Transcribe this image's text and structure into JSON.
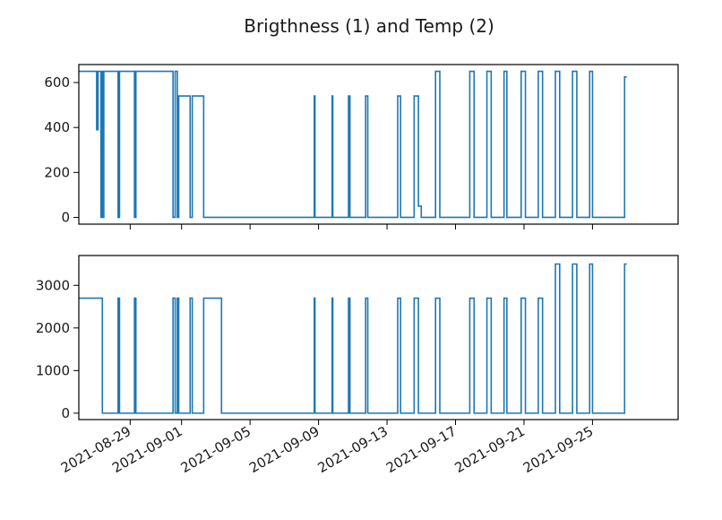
{
  "figure": {
    "suptitle": "Brigthness (1) and Temp (2)",
    "line_color": "#1f77b4"
  },
  "chart_data": [
    {
      "type": "line",
      "name": "brightness-subplot",
      "title": "",
      "xlabel": "",
      "ylabel": "",
      "x_is_date": true,
      "xlim": [
        "2021-08-26",
        "2021-09-30"
      ],
      "ylim": [
        -30,
        680
      ],
      "yticks": [
        0,
        200,
        400,
        600
      ],
      "xtick_dates": [
        "2021-08-29",
        "2021-09-01",
        "2021-09-05",
        "2021-09-09",
        "2021-09-13",
        "2021-09-17",
        "2021-09-21",
        "2021-09-25"
      ],
      "show_xtick_labels": false,
      "grid": false,
      "series": [
        {
          "x": [
            "2021-08-26 00:00",
            "2021-08-27 00:00",
            "2021-08-27 01:00",
            "2021-08-27 01:00",
            "2021-08-27 03:00",
            "2021-08-27 03:00",
            "2021-08-27 06:00",
            "2021-08-27 07:00",
            "2021-08-27 07:00",
            "2021-08-27 08:00",
            "2021-08-27 08:00",
            "2021-08-27 09:00",
            "2021-08-27 09:00",
            "2021-08-27 11:00",
            "2021-08-27 11:00",
            "2021-08-28 07:00",
            "2021-08-28 07:00",
            "2021-08-28 09:00",
            "2021-08-28 09:00",
            "2021-08-29 06:00",
            "2021-08-29 06:00",
            "2021-08-29 08:00",
            "2021-08-29 08:00",
            "2021-08-31 12:00",
            "2021-08-31 12:00",
            "2021-08-31 15:00",
            "2021-08-31 15:00",
            "2021-08-31 18:00",
            "2021-08-31 18:00",
            "2021-08-31 20:00",
            "2021-08-31 20:00",
            "2021-09-01 12:00",
            "2021-09-01 12:00",
            "2021-09-01 15:00",
            "2021-09-01 15:00",
            "2021-09-02 07:00",
            "2021-09-02 07:00",
            "2021-09-03 08:00",
            "2021-09-03 08:00",
            "2021-09-08 18:00",
            "2021-09-08 18:00",
            "2021-09-08 19:00",
            "2021-09-08 19:00",
            "2021-09-09 19:00",
            "2021-09-09 19:00",
            "2021-09-09 20:00",
            "2021-09-09 20:00",
            "2021-09-10 18:00",
            "2021-09-10 18:00",
            "2021-09-10 20:00",
            "2021-09-10 20:00",
            "2021-09-11 18:00",
            "2021-09-11 18:00",
            "2021-09-11 21:00",
            "2021-09-11 21:00",
            "2021-09-13 15:00",
            "2021-09-13 15:00",
            "2021-09-13 19:00",
            "2021-09-13 19:00",
            "2021-09-14 14:00",
            "2021-09-14 14:00",
            "2021-09-14 20:00",
            "2021-09-14 20:00",
            "2021-09-15 00:00",
            "2021-09-15 00:00",
            "2021-09-15 20:00",
            "2021-09-15 20:00",
            "2021-09-16 02:00",
            "2021-09-16 02:00",
            "2021-09-17 20:00",
            "2021-09-17 20:00",
            "2021-09-18 02:00",
            "2021-09-18 02:00",
            "2021-09-18 20:00",
            "2021-09-18 20:00",
            "2021-09-19 02:00",
            "2021-09-19 02:00",
            "2021-09-19 20:00",
            "2021-09-19 20:00",
            "2021-09-20 00:00",
            "2021-09-20 00:00",
            "2021-09-20 20:00",
            "2021-09-20 20:00",
            "2021-09-21 02:00",
            "2021-09-21 02:00",
            "2021-09-21 20:00",
            "2021-09-21 20:00",
            "2021-09-22 02:00",
            "2021-09-22 02:00",
            "2021-09-22 20:00",
            "2021-09-22 20:00",
            "2021-09-23 02:00",
            "2021-09-23 02:00",
            "2021-09-23 20:00",
            "2021-09-23 20:00",
            "2021-09-24 02:00",
            "2021-09-24 02:00",
            "2021-09-24 20:00",
            "2021-09-24 20:00",
            "2021-09-25 00:00",
            "2021-09-25 00:00",
            "2021-09-26 21:00",
            "2021-09-26 21:00",
            "2021-09-27 00:00"
          ],
          "y": [
            650,
            650,
            650,
            390,
            390,
            650,
            650,
            650,
            0,
            0,
            650,
            650,
            0,
            0,
            650,
            650,
            0,
            0,
            650,
            650,
            0,
            0,
            650,
            650,
            0,
            0,
            650,
            650,
            0,
            0,
            540,
            540,
            0,
            0,
            540,
            540,
            0,
            0,
            0,
            0,
            540,
            540,
            0,
            0,
            540,
            540,
            0,
            0,
            540,
            540,
            0,
            0,
            540,
            540,
            0,
            0,
            540,
            540,
            0,
            0,
            540,
            540,
            50,
            50,
            0,
            0,
            650,
            650,
            0,
            0,
            650,
            650,
            0,
            0,
            650,
            650,
            0,
            0,
            650,
            650,
            0,
            0,
            650,
            650,
            0,
            0,
            650,
            650,
            0,
            0,
            650,
            650,
            0,
            0,
            650,
            650,
            0,
            0,
            650,
            650,
            0,
            0,
            625,
            625
          ]
        }
      ]
    },
    {
      "type": "line",
      "name": "temperature-subplot",
      "title": "",
      "xlabel": "",
      "ylabel": "",
      "x_is_date": true,
      "xlim": [
        "2021-08-26",
        "2021-09-30"
      ],
      "ylim": [
        -150,
        3700
      ],
      "yticks": [
        0,
        1000,
        2000,
        3000
      ],
      "xtick_dates": [
        "2021-08-29",
        "2021-09-01",
        "2021-09-05",
        "2021-09-09",
        "2021-09-13",
        "2021-09-17",
        "2021-09-21",
        "2021-09-25"
      ],
      "show_xtick_labels": true,
      "grid": false,
      "series": [
        {
          "x": [
            "2021-08-26 00:00",
            "2021-08-27 09:00",
            "2021-08-27 09:00",
            "2021-08-28 07:00",
            "2021-08-28 07:00",
            "2021-08-28 09:00",
            "2021-08-28 09:00",
            "2021-08-29 06:00",
            "2021-08-29 06:00",
            "2021-08-29 08:00",
            "2021-08-29 08:00",
            "2021-08-31 12:00",
            "2021-08-31 12:00",
            "2021-08-31 15:00",
            "2021-08-31 15:00",
            "2021-08-31 18:00",
            "2021-08-31 18:00",
            "2021-08-31 20:00",
            "2021-08-31 20:00",
            "2021-09-01 12:00",
            "2021-09-01 12:00",
            "2021-09-01 15:00",
            "2021-09-01 15:00",
            "2021-09-02 07:00",
            "2021-09-02 07:00",
            "2021-09-03 08:00",
            "2021-09-03 08:00",
            "2021-09-08 18:00",
            "2021-09-08 18:00",
            "2021-09-08 19:00",
            "2021-09-08 19:00",
            "2021-09-09 19:00",
            "2021-09-09 19:00",
            "2021-09-09 20:00",
            "2021-09-09 20:00",
            "2021-09-10 18:00",
            "2021-09-10 18:00",
            "2021-09-10 20:00",
            "2021-09-10 20:00",
            "2021-09-11 18:00",
            "2021-09-11 18:00",
            "2021-09-11 21:00",
            "2021-09-11 21:00",
            "2021-09-13 15:00",
            "2021-09-13 15:00",
            "2021-09-13 19:00",
            "2021-09-13 19:00",
            "2021-09-14 14:00",
            "2021-09-14 14:00",
            "2021-09-14 20:00",
            "2021-09-14 20:00",
            "2021-09-15 20:00",
            "2021-09-15 20:00",
            "2021-09-16 02:00",
            "2021-09-16 02:00",
            "2021-09-17 20:00",
            "2021-09-17 20:00",
            "2021-09-18 02:00",
            "2021-09-18 02:00",
            "2021-09-18 20:00",
            "2021-09-18 20:00",
            "2021-09-19 02:00",
            "2021-09-19 02:00",
            "2021-09-19 20:00",
            "2021-09-19 20:00",
            "2021-09-20 00:00",
            "2021-09-20 00:00",
            "2021-09-20 20:00",
            "2021-09-20 20:00",
            "2021-09-21 02:00",
            "2021-09-21 02:00",
            "2021-09-21 20:00",
            "2021-09-21 20:00",
            "2021-09-22 02:00",
            "2021-09-22 02:00",
            "2021-09-22 20:00",
            "2021-09-22 20:00",
            "2021-09-23 02:00",
            "2021-09-23 02:00",
            "2021-09-23 20:00",
            "2021-09-23 20:00",
            "2021-09-24 02:00",
            "2021-09-24 02:00",
            "2021-09-24 20:00",
            "2021-09-24 20:00",
            "2021-09-25 00:00",
            "2021-09-25 00:00",
            "2021-09-26 21:00",
            "2021-09-26 21:00",
            "2021-09-27 00:00"
          ],
          "y": [
            2700,
            2700,
            0,
            0,
            2700,
            2700,
            0,
            0,
            2700,
            2700,
            0,
            0,
            2700,
            2700,
            0,
            0,
            2700,
            2700,
            0,
            0,
            2700,
            2700,
            0,
            0,
            2700,
            2700,
            0,
            0,
            2700,
            2700,
            0,
            0,
            2700,
            2700,
            0,
            0,
            2700,
            2700,
            0,
            0,
            2700,
            2700,
            0,
            0,
            2700,
            2700,
            0,
            0,
            2700,
            2700,
            0,
            0,
            2700,
            2700,
            0,
            0,
            2700,
            2700,
            0,
            0,
            2700,
            2700,
            0,
            0,
            2700,
            2700,
            0,
            0,
            2700,
            2700,
            0,
            0,
            2700,
            2700,
            0,
            0,
            3500,
            3500,
            0,
            0,
            3500,
            3500,
            0,
            0,
            3500,
            3500,
            0,
            0,
            3500,
            3500
          ]
        }
      ]
    }
  ]
}
